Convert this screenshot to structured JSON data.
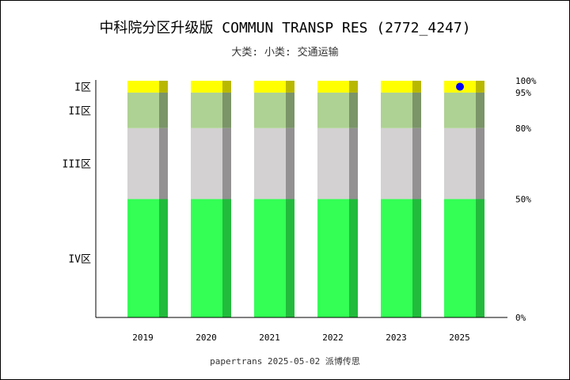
{
  "chart_data": {
    "type": "bar",
    "title": "中科院分区升级版 COMMUN TRANSP RES (2772_4247)",
    "subtitle": "大类:  小类: 交通运输",
    "footer": "papertrans 2025-05-02 派博传思",
    "categories": [
      "2019",
      "2020",
      "2021",
      "2022",
      "2023",
      "2025"
    ],
    "ylim": [
      0,
      100
    ],
    "ytick_labels": [
      "0%",
      "50%",
      "80%",
      "95%",
      "100%"
    ],
    "bands": [
      {
        "name": "IV区",
        "from": 0,
        "to": 50,
        "color": "#33ff55",
        "shade": "#22bb3c"
      },
      {
        "name": "III区",
        "from": 50,
        "to": 80,
        "color": "#d3d1d1",
        "shade": "#939191"
      },
      {
        "name": "II区",
        "from": 80,
        "to": 95,
        "color": "#aed293",
        "shade": "#7b9468"
      },
      {
        "name": "I区",
        "from": 95,
        "to": 100,
        "color": "#ffff00",
        "shade": "#b8b800"
      }
    ],
    "markers": [
      {
        "category": "2025",
        "value": 97.5,
        "color": "#0000ff"
      }
    ],
    "grid": false
  }
}
